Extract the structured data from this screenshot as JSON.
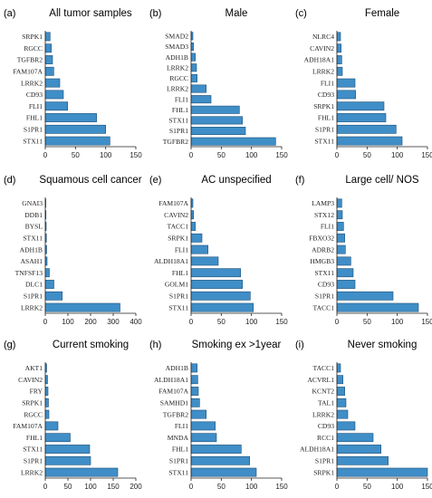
{
  "chart_data": [
    {
      "type": "bar",
      "orientation": "horizontal",
      "panel": "(a)",
      "title": "All tumor samples",
      "categories": [
        "SRPK1",
        "RGCC",
        "TGFBR2",
        "FAM107A",
        "LRRK2",
        "CD93",
        "FLI1",
        "FHL1",
        "S1PR1",
        "STX11"
      ],
      "values": [
        8,
        10,
        12,
        14,
        24,
        30,
        37,
        85,
        100,
        107
      ],
      "xlim": [
        0,
        150
      ],
      "xticks": [
        0,
        50,
        100,
        150
      ]
    },
    {
      "type": "bar",
      "orientation": "horizontal",
      "panel": "(b)",
      "title": "Male",
      "categories": [
        "SMAD2",
        "SMAD3",
        "ADH1B",
        "LRRK2",
        "RGCC",
        "LRRK2",
        "FLI1",
        "FHL1",
        "STX11",
        "S1PR1",
        "TGFBR2"
      ],
      "values": [
        3,
        4,
        7,
        9,
        10,
        25,
        33,
        80,
        85,
        90,
        140
      ],
      "xlim": [
        0,
        150
      ],
      "xticks": [
        0,
        50,
        100,
        150
      ]
    },
    {
      "type": "bar",
      "orientation": "horizontal",
      "panel": "(c)",
      "title": "Female",
      "categories": [
        "NLRC4",
        "CAVIN2",
        "ADH18A1",
        "LRRK2",
        "FLI1",
        "CD93",
        "SRPK1",
        "FHL1",
        "S1PR1",
        "STX11"
      ],
      "values": [
        6,
        7,
        8,
        9,
        30,
        31,
        78,
        81,
        98,
        108
      ],
      "xlim": [
        0,
        150
      ],
      "xticks": [
        0,
        50,
        100,
        150
      ]
    },
    {
      "type": "bar",
      "orientation": "horizontal",
      "panel": "(d)",
      "title": "Squamous cell cancer",
      "categories": [
        "GNAI3",
        "DDB1",
        "BYSL",
        "STX11",
        "ADH1B",
        "ASAH1",
        "TNFSF13",
        "DLC1",
        "S1PR1",
        "LRRK2"
      ],
      "values": [
        2,
        3,
        4,
        5,
        6,
        8,
        18,
        38,
        75,
        330
      ],
      "xlim": [
        0,
        400
      ],
      "xticks": [
        0,
        100,
        200,
        300,
        400
      ]
    },
    {
      "type": "bar",
      "orientation": "horizontal",
      "panel": "(e)",
      "title": "AC unspecified",
      "categories": [
        "FAM107A",
        "CAVIN2",
        "TACC1",
        "SRPK1",
        "FLI1",
        "ALDH18A1",
        "FHL1",
        "GOLM1",
        "S1PR1",
        "STX11"
      ],
      "values": [
        3,
        4,
        7,
        18,
        28,
        45,
        82,
        85,
        98,
        103
      ],
      "xlim": [
        0,
        150
      ],
      "xticks": [
        0,
        50,
        100,
        150
      ]
    },
    {
      "type": "bar",
      "orientation": "horizontal",
      "panel": "(f)",
      "title": "Large cell/ NOS",
      "categories": [
        "LAMP3",
        "STX12",
        "FLI1",
        "FBXO32",
        "ADRB2",
        "HMGB3",
        "STX11",
        "CD93",
        "S1PR1",
        "TACC1"
      ],
      "values": [
        8,
        9,
        11,
        13,
        14,
        23,
        27,
        30,
        93,
        135
      ],
      "xlim": [
        0,
        150
      ],
      "xticks": [
        0,
        50,
        100,
        150
      ]
    },
    {
      "type": "bar",
      "orientation": "horizontal",
      "panel": "(g)",
      "title": "Current smoking",
      "categories": [
        "AKT1",
        "CAVIN2",
        "FRY",
        "SRPK1",
        "RGCC",
        "FAM107A",
        "FHL1",
        "STX11",
        "S1PR1",
        "LRRK2"
      ],
      "values": [
        3,
        5,
        6,
        7,
        8,
        28,
        55,
        98,
        100,
        160
      ],
      "xlim": [
        0,
        200
      ],
      "xticks": [
        0,
        50,
        100,
        150,
        200
      ]
    },
    {
      "type": "bar",
      "orientation": "horizontal",
      "panel": "(h)",
      "title": "Smoking ex >1year",
      "categories": [
        "ADH1B",
        "ALDH18A1",
        "FAM107A",
        "SAMHD1",
        "TGFBR2",
        "FLI1",
        "MNDA",
        "FHL1",
        "S1PR1",
        "STX11"
      ],
      "values": [
        10,
        11,
        12,
        14,
        25,
        40,
        42,
        83,
        97,
        108
      ],
      "xlim": [
        0,
        150
      ],
      "xticks": [
        0,
        50,
        100,
        150
      ]
    },
    {
      "type": "bar",
      "orientation": "horizontal",
      "panel": "(i)",
      "title": "Never smoking",
      "categories": [
        "TACC1",
        "ACVRL1",
        "KCNT2",
        "TAL1",
        "LRRK2",
        "CD93",
        "RCC1",
        "ALDH18A1",
        "S1PR1",
        "SRPK1"
      ],
      "values": [
        6,
        10,
        13,
        15,
        18,
        30,
        60,
        73,
        85,
        150
      ],
      "xlim": [
        0,
        150
      ],
      "xticks": [
        0,
        50,
        100,
        150
      ]
    }
  ]
}
